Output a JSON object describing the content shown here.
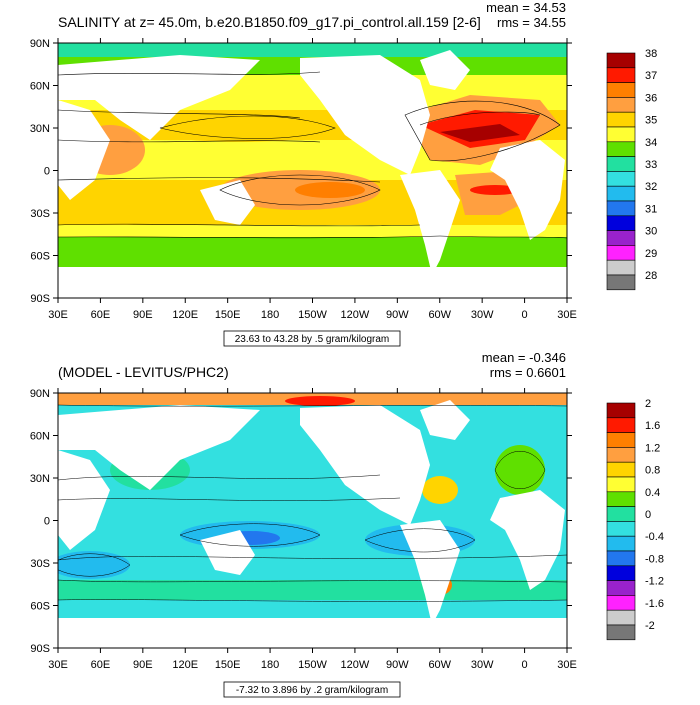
{
  "panels": [
    {
      "title": "SALINITY at z=  45.0m, b.e20.B1850.f09_g17.pi_control.all.159 [2-6]",
      "mean_label": "mean = 34.53",
      "rms_label": "rms = 34.55",
      "caption": "23.63 to 43.28 by .5 gram/kilogram",
      "colorbar": {
        "labels": [
          "38",
          "37",
          "36",
          "35",
          "34",
          "33",
          "32",
          "31",
          "30",
          "29",
          "28"
        ],
        "colors": [
          "#a60000",
          "#ff1a00",
          "#ff7f00",
          "#ff9f40",
          "#ffd400",
          "#ffff33",
          "#5fe000",
          "#22e0a0",
          "#33e0e0",
          "#22bbee",
          "#2277ee",
          "#0000dd",
          "#9922cc",
          "#ff22ff",
          "#cccccc",
          "#777777"
        ]
      }
    },
    {
      "title": "(MODEL - LEVITUS/PHC2)",
      "mean_label": "mean = -0.346",
      "rms_label": "rms = 0.6601",
      "caption": "-7.32 to 3.896 by .2 gram/kilogram",
      "colorbar": {
        "labels": [
          "2",
          "1.6",
          "1.2",
          "0.8",
          "0.4",
          "0",
          "-0.4",
          "-0.8",
          "-1.2",
          "-1.6",
          "-2"
        ],
        "colors": [
          "#a60000",
          "#ff1a00",
          "#ff7f00",
          "#ff9f40",
          "#ffd400",
          "#ffff33",
          "#5fe000",
          "#22e0a0",
          "#33e0e0",
          "#22bbee",
          "#2277ee",
          "#0000dd",
          "#9922cc",
          "#ff22ff",
          "#cccccc",
          "#777777"
        ]
      }
    }
  ],
  "axes": {
    "lon_labels": [
      "30E",
      "60E",
      "90E",
      "120E",
      "150E",
      "180",
      "150W",
      "120W",
      "90W",
      "60W",
      "30W",
      "0",
      "30E"
    ],
    "lat_labels": [
      "90N",
      "60N",
      "30N",
      "0",
      "30S",
      "60S",
      "90S"
    ]
  }
}
